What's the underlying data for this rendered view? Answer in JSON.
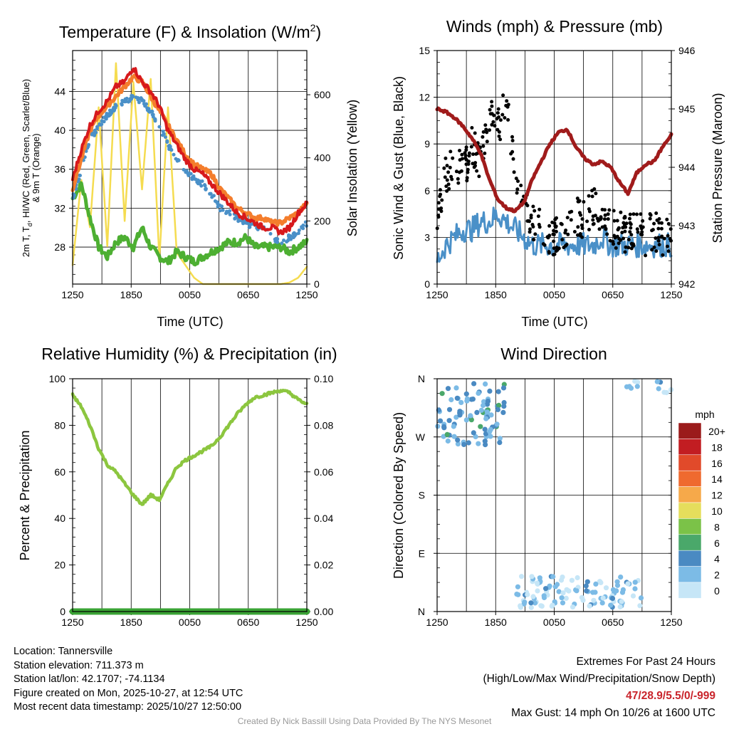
{
  "colors": {
    "red": "#d7191c",
    "green": "#4daf32",
    "blue": "#4a90c8",
    "orange": "#f47d2c",
    "yellow": "#f5dc50",
    "maroon": "#a01b1b",
    "black": "#000000",
    "rh_green": "#8cc63f",
    "precip_green": "#3aa335",
    "extremes": "#c9242b"
  },
  "chart_data": [
    {
      "id": "temperature",
      "type": "line",
      "title": "Temperature (F) & Insolation (W/m",
      "title_sup": "2",
      "title_end": ")",
      "xlabel": "Time (UTC)",
      "ylabel_line1": "2m T, T",
      "ylabel_sub": "d",
      "ylabel_line1_end": ", HI/WC (Red, Green, Scarlet/Blue)",
      "ylabel_line2": "& 9m T (Orange)",
      "y2label": "Solar Insolation (Yellow)",
      "x_ticks": [
        "1250",
        "1850",
        "0050",
        "0650",
        "1250"
      ],
      "y_ticks": [
        28,
        32,
        36,
        40,
        44
      ],
      "y2_ticks": [
        0,
        200,
        400,
        600
      ],
      "ylim": [
        24.2,
        48.2
      ],
      "y2lim": [
        0,
        740
      ],
      "series": [
        {
          "name": "2m T",
          "color": "red",
          "values": [
            35,
            38,
            40.5,
            42,
            43,
            44.5,
            45,
            46.5,
            45,
            44,
            42.5,
            40,
            38.5,
            37,
            36,
            35.5,
            34.5,
            33.5,
            32.5,
            31.5,
            31,
            30.5,
            30,
            30,
            29.5,
            30,
            31.5,
            32.5
          ]
        },
        {
          "name": "9m T",
          "color": "orange",
          "values": [
            34,
            37,
            40,
            41.5,
            42.5,
            43.5,
            44.5,
            45.5,
            45,
            43.5,
            42,
            40.5,
            39,
            37.5,
            36.5,
            36,
            35.5,
            34,
            33,
            32,
            31.5,
            31,
            31,
            30.5,
            30.5,
            31,
            31.5,
            32.5
          ]
        },
        {
          "name": "Dewpoint",
          "color": "green",
          "values": [
            33,
            34.5,
            31,
            28,
            27,
            28.5,
            29,
            28,
            30,
            28,
            27,
            26.5,
            27.5,
            27,
            26.5,
            27,
            27.5,
            28,
            28.5,
            28.5,
            29,
            28,
            28,
            28,
            28,
            27.5,
            28,
            28.5
          ]
        },
        {
          "name": "HI/WC",
          "color": "blue",
          "values": [
            33,
            36,
            39,
            40.5,
            41.5,
            42.5,
            43,
            43.5,
            43,
            42,
            40.5,
            38.5,
            37,
            36,
            35,
            34.5,
            33.5,
            32,
            31.5,
            31,
            30.5,
            30,
            30,
            29,
            28.5,
            29,
            29.5,
            30.5
          ]
        },
        {
          "name": "Solar Insolation",
          "color": "yellow",
          "values": [
            60,
            330,
            180,
            560,
            120,
            700,
            200,
            640,
            300,
            650,
            80,
            560,
            100,
            60,
            20,
            0,
            0,
            0,
            0,
            0,
            0,
            0,
            0,
            0,
            0,
            5,
            20,
            55
          ]
        }
      ]
    },
    {
      "id": "wind",
      "type": "line",
      "title": "Winds (mph) & Pressure (mb)",
      "xlabel": "Time (UTC)",
      "ylabel": "Sonic Wind & Gust (Blue, Black)",
      "y2label": "Station Pressure (Maroon)",
      "x_ticks": [
        "1250",
        "1850",
        "0050",
        "0650",
        "1250"
      ],
      "y_ticks": [
        0,
        3,
        6,
        9,
        12,
        15
      ],
      "y2_ticks": [
        942,
        943,
        944,
        945,
        946
      ],
      "ylim": [
        0,
        15
      ],
      "y2lim": [
        942,
        946
      ],
      "series": [
        {
          "name": "Sonic Wind",
          "color": "blue",
          "values": [
            1.5,
            2.5,
            3,
            3.5,
            3.5,
            4,
            4,
            4.5,
            4,
            3.5,
            3,
            2.5,
            2.5,
            2.5,
            2.5,
            2.5,
            2.5,
            2.5,
            2.5,
            3,
            2.5,
            2.5,
            2.5,
            2.5,
            2.5,
            2.5,
            2.5,
            2.5
          ]
        },
        {
          "name": "Gust",
          "color": "black",
          "values": [
            4,
            7,
            8,
            7,
            9,
            8,
            11,
            10,
            12,
            7,
            5,
            4,
            3.5,
            3,
            3,
            3.5,
            4.5,
            4,
            5,
            4,
            3.5,
            3.5,
            3,
            4,
            3,
            3.5,
            3,
            3.5
          ]
        },
        {
          "name": "Station Pressure",
          "color": "maroon",
          "values": [
            945,
            944.95,
            944.85,
            944.7,
            944.5,
            944.25,
            943.8,
            943.45,
            943.3,
            943.25,
            943.4,
            943.8,
            944.1,
            944.4,
            944.6,
            944.65,
            944.35,
            944.15,
            944.05,
            944.1,
            944,
            943.75,
            943.55,
            943.9,
            944.05,
            944.1,
            944.35,
            944.55
          ]
        }
      ]
    },
    {
      "id": "rh",
      "type": "line",
      "title": "Relative Humidity (%) & Precipitation (in)",
      "ylabel": "Percent & Precipitation",
      "x_ticks": [
        "1250",
        "1850",
        "0050",
        "0650",
        "1250"
      ],
      "y_ticks": [
        0,
        20,
        40,
        60,
        80,
        100
      ],
      "y2_ticks": [
        "0.00",
        "0.02",
        "0.04",
        "0.06",
        "0.08",
        "0.10"
      ],
      "ylim": [
        0,
        100
      ],
      "y2lim": [
        0,
        0.1
      ],
      "series": [
        {
          "name": "Relative Humidity",
          "color": "rh_green",
          "values": [
            93,
            88,
            80,
            70,
            63,
            60,
            55,
            50,
            46,
            50,
            48,
            55,
            62,
            65,
            67,
            69,
            71,
            75,
            80,
            85,
            89,
            92,
            93,
            94,
            95,
            94,
            91,
            89
          ]
        },
        {
          "name": "Precipitation",
          "color": "precip_green",
          "values": [
            0,
            0,
            0,
            0,
            0,
            0,
            0,
            0,
            0,
            0,
            0,
            0,
            0,
            0,
            0,
            0,
            0,
            0,
            0,
            0,
            0,
            0,
            0,
            0,
            0,
            0,
            0,
            0
          ]
        }
      ]
    },
    {
      "id": "direction",
      "type": "scatter",
      "title": "Wind Direction",
      "ylabel": "Direction (Colored By Speed)",
      "x_ticks": [
        "1250",
        "1850",
        "0050",
        "0650",
        "1250"
      ],
      "y_ticks": [
        "N",
        "E",
        "S",
        "W",
        "N"
      ],
      "legend_title": "mph",
      "legend_labels": [
        "0",
        "2",
        "4",
        "6",
        "8",
        "10",
        "12",
        "14",
        "16",
        "18",
        "20+"
      ],
      "legend_colors": [
        "#c6e6f7",
        "#7cbbe6",
        "#4a8ac2",
        "#4aa86a",
        "#7bc248",
        "#e5de5c",
        "#f6a94a",
        "#ef6a2f",
        "#e14a2a",
        "#c21d22",
        "#9b1b1b"
      ],
      "points_note": "direction in degrees vs hours since 12:50 UTC",
      "clusters": [
        {
          "t_range": [
            0,
            7
          ],
          "dir_range": [
            255,
            355
          ],
          "count": 90
        },
        {
          "t_range": [
            8,
            21
          ],
          "dir_range": [
            5,
            55
          ],
          "count": 110
        },
        {
          "t_range": [
            19,
            21
          ],
          "dir_range": [
            345,
            360
          ],
          "count": 6
        },
        {
          "t_range": [
            22.5,
            24
          ],
          "dir_range": [
            338,
            358
          ],
          "count": 6
        }
      ]
    }
  ],
  "footer": {
    "location": "Location: Tannersville",
    "elevation": "Station elevation: 711.373 m",
    "latlon": "Station lat/lon: 42.1707; -74.1134",
    "created": "Figure created on Mon, 2025-10-27, at 12:54 UTC",
    "recent": "Most recent data timestamp: 2025/10/27 12:50:00",
    "extremes_title": "Extremes For Past 24 Hours",
    "extremes_desc": "(High/Low/Max Wind/Precipitation/Snow Depth)",
    "extremes_values": "47/28.9/5.5/0/-999",
    "max_gust": "Max Gust: 14 mph On 10/26 at 1600 UTC",
    "credit": "Created By Nick Bassill Using Data Provided By The NYS Mesonet"
  }
}
